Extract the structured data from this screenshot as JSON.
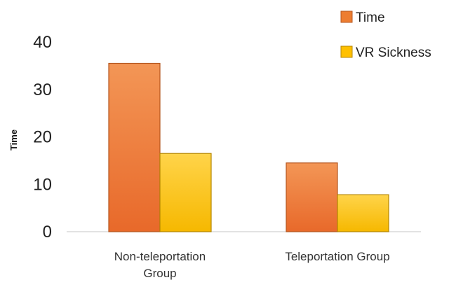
{
  "chart_data": {
    "type": "bar",
    "ylabel": "Time",
    "xlabel": "",
    "title": "",
    "ylim": [
      0,
      40
    ],
    "yticks": [
      0,
      10,
      20,
      30,
      40
    ],
    "categories": [
      [
        "Non-teleportation",
        "Group"
      ],
      [
        "Teleportation Group"
      ]
    ],
    "series": [
      {
        "name": "Time",
        "color": "#ED7D31",
        "values": [
          35.5,
          14.5
        ]
      },
      {
        "name": "VR Sickness",
        "color": "#FFC000",
        "values": [
          16.5,
          7.8
        ]
      }
    ],
    "grid": false,
    "legend": "top-right"
  }
}
